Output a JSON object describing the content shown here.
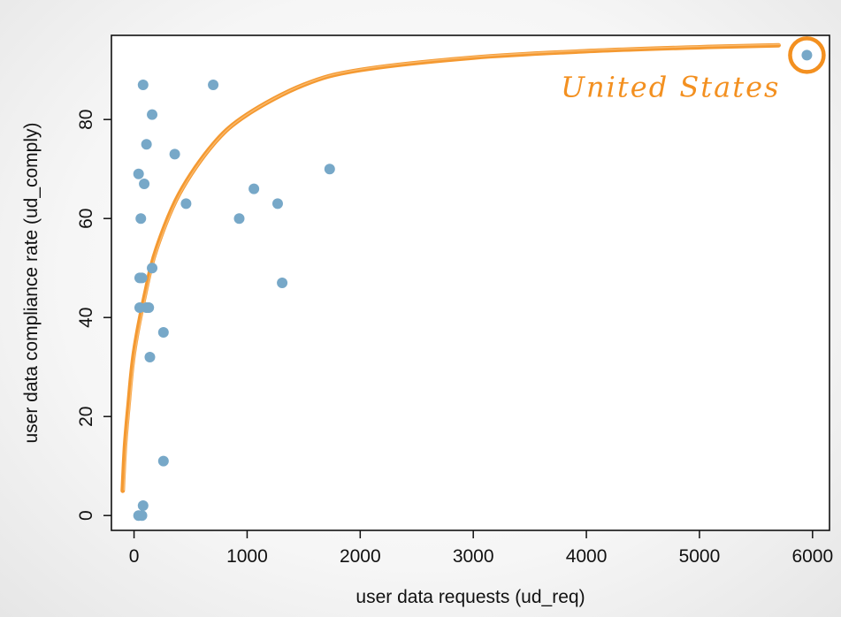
{
  "chart_data": {
    "type": "scatter",
    "xlabel": "user data requests (ud_req)",
    "ylabel": "user data compliance rate (ud_comply)",
    "xlim": [
      -200,
      6150
    ],
    "ylim": [
      -3,
      97
    ],
    "x_ticks": [
      0,
      1000,
      2000,
      3000,
      4000,
      5000,
      6000
    ],
    "y_ticks": [
      0,
      20,
      40,
      60,
      80
    ],
    "point_color": "#77a8c8",
    "highlight_color": "#f39020",
    "points": [
      {
        "x": 40,
        "y": 0
      },
      {
        "x": 70,
        "y": 0
      },
      {
        "x": 80,
        "y": 2
      },
      {
        "x": 260,
        "y": 11
      },
      {
        "x": 140,
        "y": 32
      },
      {
        "x": 260,
        "y": 37
      },
      {
        "x": 50,
        "y": 42
      },
      {
        "x": 110,
        "y": 42
      },
      {
        "x": 130,
        "y": 42
      },
      {
        "x": 50,
        "y": 48
      },
      {
        "x": 70,
        "y": 48
      },
      {
        "x": 160,
        "y": 50
      },
      {
        "x": 60,
        "y": 60
      },
      {
        "x": 90,
        "y": 67
      },
      {
        "x": 40,
        "y": 69
      },
      {
        "x": 110,
        "y": 75
      },
      {
        "x": 160,
        "y": 81
      },
      {
        "x": 80,
        "y": 87
      },
      {
        "x": 360,
        "y": 73
      },
      {
        "x": 460,
        "y": 63
      },
      {
        "x": 700,
        "y": 87
      },
      {
        "x": 930,
        "y": 60
      },
      {
        "x": 1060,
        "y": 66
      },
      {
        "x": 1270,
        "y": 63
      },
      {
        "x": 1310,
        "y": 47
      },
      {
        "x": 1730,
        "y": 70
      },
      {
        "x": 5950,
        "y": 93
      }
    ],
    "trend_curve": [
      {
        "x": -100,
        "y": 5
      },
      {
        "x": -80,
        "y": 14
      },
      {
        "x": -50,
        "y": 22
      },
      {
        "x": 0,
        "y": 33
      },
      {
        "x": 100,
        "y": 45
      },
      {
        "x": 200,
        "y": 54
      },
      {
        "x": 400,
        "y": 65
      },
      {
        "x": 700,
        "y": 75
      },
      {
        "x": 1000,
        "y": 81
      },
      {
        "x": 1500,
        "y": 87
      },
      {
        "x": 2000,
        "y": 90
      },
      {
        "x": 3000,
        "y": 92.5
      },
      {
        "x": 4000,
        "y": 93.8
      },
      {
        "x": 5000,
        "y": 94.6
      },
      {
        "x": 5700,
        "y": 95
      }
    ],
    "annotation": {
      "text": "United States",
      "point_x": 5950,
      "point_y": 93
    }
  }
}
